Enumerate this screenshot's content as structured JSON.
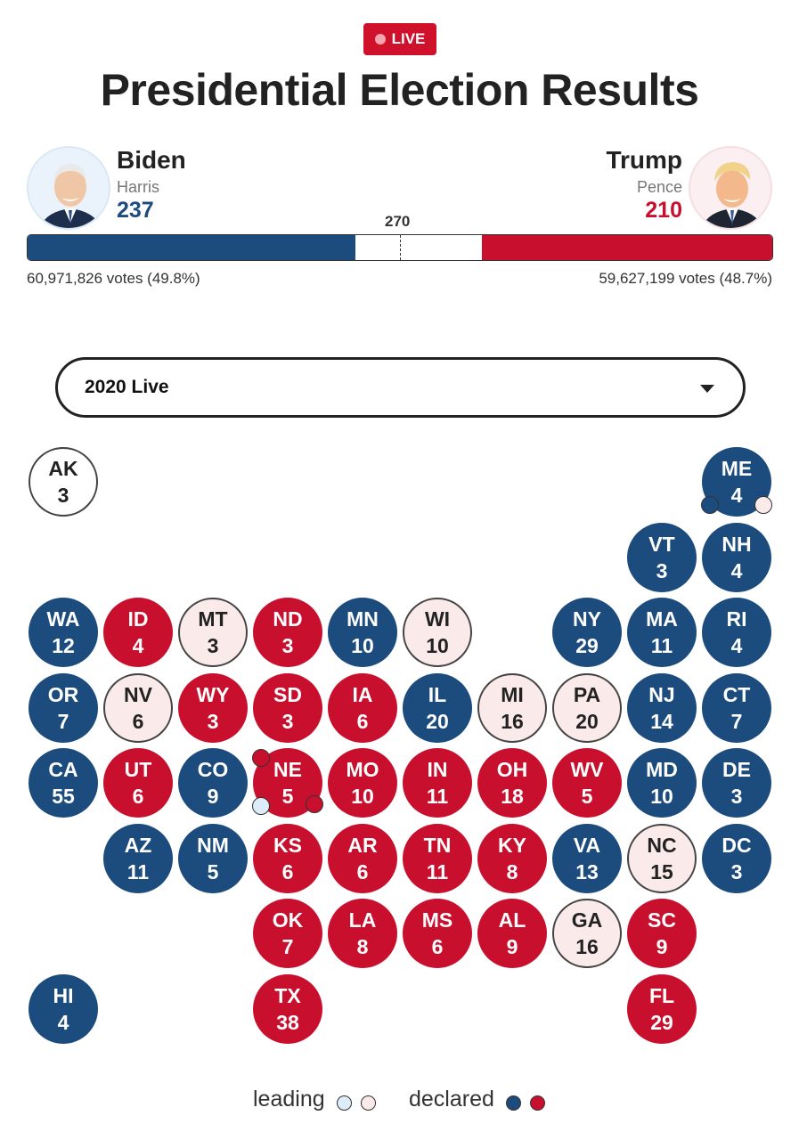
{
  "header": {
    "live_label": "LIVE",
    "title": "Presidential Election Results"
  },
  "dem": {
    "name": "Biden",
    "running_mate": "Harris",
    "electoral_votes": 237,
    "popular_votes": "60,971,826 votes (49.8%)",
    "color": "#1c4b7d"
  },
  "rep": {
    "name": "Trump",
    "running_mate": "Pence",
    "electoral_votes": 210,
    "popular_votes": "59,627,199 votes (48.7%)",
    "color": "#c8102e"
  },
  "bar": {
    "threshold_label": "270",
    "total_ev": 538
  },
  "selector": {
    "value": "2020 Live"
  },
  "legend": {
    "leading_label": "leading",
    "declared_label": "declared"
  },
  "states": [
    {
      "abbr": "AK",
      "ev": 3,
      "status": "undecided"
    },
    {
      "abbr": "ME",
      "ev": 4,
      "status": "dem"
    },
    {
      "abbr": "VT",
      "ev": 3,
      "status": "dem"
    },
    {
      "abbr": "NH",
      "ev": 4,
      "status": "dem"
    },
    {
      "abbr": "WA",
      "ev": 12,
      "status": "dem"
    },
    {
      "abbr": "ID",
      "ev": 4,
      "status": "rep"
    },
    {
      "abbr": "MT",
      "ev": 3,
      "status": "lean-rep"
    },
    {
      "abbr": "ND",
      "ev": 3,
      "status": "rep"
    },
    {
      "abbr": "MN",
      "ev": 10,
      "status": "dem"
    },
    {
      "abbr": "WI",
      "ev": 10,
      "status": "lean-rep"
    },
    {
      "abbr": "NY",
      "ev": 29,
      "status": "dem"
    },
    {
      "abbr": "MA",
      "ev": 11,
      "status": "dem"
    },
    {
      "abbr": "RI",
      "ev": 4,
      "status": "dem"
    },
    {
      "abbr": "OR",
      "ev": 7,
      "status": "dem"
    },
    {
      "abbr": "NV",
      "ev": 6,
      "status": "lean-rep"
    },
    {
      "abbr": "WY",
      "ev": 3,
      "status": "rep"
    },
    {
      "abbr": "SD",
      "ev": 3,
      "status": "rep"
    },
    {
      "abbr": "IA",
      "ev": 6,
      "status": "rep"
    },
    {
      "abbr": "IL",
      "ev": 20,
      "status": "dem"
    },
    {
      "abbr": "MI",
      "ev": 16,
      "status": "lean-rep"
    },
    {
      "abbr": "PA",
      "ev": 20,
      "status": "lean-rep"
    },
    {
      "abbr": "NJ",
      "ev": 14,
      "status": "dem"
    },
    {
      "abbr": "CT",
      "ev": 7,
      "status": "dem"
    },
    {
      "abbr": "CA",
      "ev": 55,
      "status": "dem"
    },
    {
      "abbr": "UT",
      "ev": 6,
      "status": "rep"
    },
    {
      "abbr": "CO",
      "ev": 9,
      "status": "dem"
    },
    {
      "abbr": "NE",
      "ev": 5,
      "status": "rep"
    },
    {
      "abbr": "MO",
      "ev": 10,
      "status": "rep"
    },
    {
      "abbr": "IN",
      "ev": 11,
      "status": "rep"
    },
    {
      "abbr": "OH",
      "ev": 18,
      "status": "rep"
    },
    {
      "abbr": "WV",
      "ev": 5,
      "status": "rep"
    },
    {
      "abbr": "MD",
      "ev": 10,
      "status": "dem"
    },
    {
      "abbr": "DE",
      "ev": 3,
      "status": "dem"
    },
    {
      "abbr": "AZ",
      "ev": 11,
      "status": "dem"
    },
    {
      "abbr": "NM",
      "ev": 5,
      "status": "dem"
    },
    {
      "abbr": "KS",
      "ev": 6,
      "status": "rep"
    },
    {
      "abbr": "AR",
      "ev": 6,
      "status": "rep"
    },
    {
      "abbr": "TN",
      "ev": 11,
      "status": "rep"
    },
    {
      "abbr": "KY",
      "ev": 8,
      "status": "rep"
    },
    {
      "abbr": "VA",
      "ev": 13,
      "status": "dem"
    },
    {
      "abbr": "NC",
      "ev": 15,
      "status": "lean-rep"
    },
    {
      "abbr": "DC",
      "ev": 3,
      "status": "dem"
    },
    {
      "abbr": "OK",
      "ev": 7,
      "status": "rep"
    },
    {
      "abbr": "LA",
      "ev": 8,
      "status": "rep"
    },
    {
      "abbr": "MS",
      "ev": 6,
      "status": "rep"
    },
    {
      "abbr": "AL",
      "ev": 9,
      "status": "rep"
    },
    {
      "abbr": "GA",
      "ev": 16,
      "status": "lean-rep"
    },
    {
      "abbr": "SC",
      "ev": 9,
      "status": "rep"
    },
    {
      "abbr": "HI",
      "ev": 4,
      "status": "dem"
    },
    {
      "abbr": "TX",
      "ev": 38,
      "status": "rep"
    },
    {
      "abbr": "FL",
      "ev": 29,
      "status": "rep"
    }
  ],
  "districts": [
    {
      "state": "ME",
      "status": "dem"
    },
    {
      "state": "ME",
      "status": "lean-rep"
    },
    {
      "state": "NE",
      "status": "rep"
    },
    {
      "state": "NE",
      "status": "lean-dem"
    },
    {
      "state": "NE",
      "status": "rep"
    }
  ]
}
